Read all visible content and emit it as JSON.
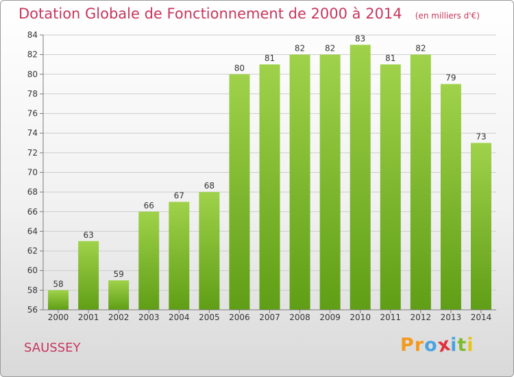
{
  "chart_data": {
    "type": "bar",
    "title": "Dotation Globale de Fonctionnement de 2000 à 2014",
    "unit_note": "(en milliers d'€)",
    "xlabel": "",
    "ylabel": "",
    "categories": [
      "2000",
      "2001",
      "2002",
      "2003",
      "2004",
      "2005",
      "2006",
      "2007",
      "2008",
      "2009",
      "2010",
      "2011",
      "2012",
      "2013",
      "2014"
    ],
    "values": [
      58,
      63,
      59,
      66,
      67,
      68,
      80,
      81,
      82,
      82,
      83,
      81,
      82,
      79,
      73
    ],
    "ylim": [
      56,
      84
    ],
    "yticks": [
      56,
      58,
      60,
      62,
      64,
      66,
      68,
      70,
      72,
      74,
      76,
      78,
      80,
      82,
      84
    ],
    "grid": "horizontal",
    "bar_color_top": "#9fd24a",
    "bar_color_bottom": "#5f9e16"
  },
  "footer": {
    "commune": "SAUSSEY",
    "logo_letters": [
      "P",
      "r",
      "o",
      "x",
      "i",
      "t",
      "i"
    ],
    "logo_colors": [
      "#f39a1e",
      "#f39a1e",
      "#4aa3df",
      "#e2313b",
      "#4aa3df",
      "#7dbb2e",
      "#e8c41a"
    ]
  },
  "colors": {
    "title": "#c8365c",
    "grid": "#cccccc",
    "axis": "#7a7a7a"
  }
}
